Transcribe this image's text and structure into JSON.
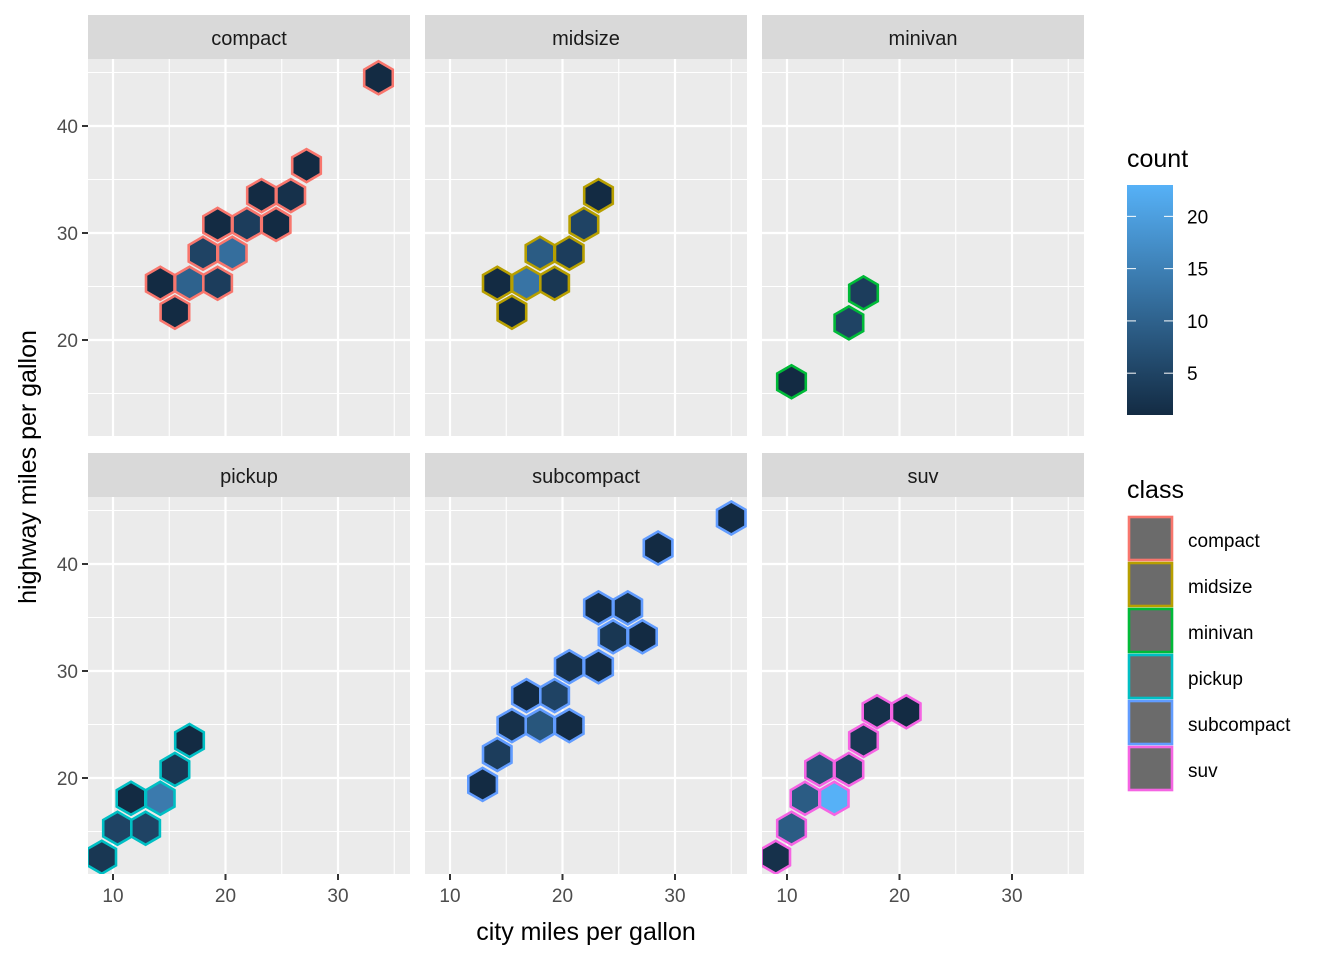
{
  "chart_data": {
    "type": "heatmap",
    "subtype": "hexbin-faceted",
    "xlabel": "city miles per gallon",
    "ylabel": "highway miles per gallon",
    "xlim": [
      8.8,
      37.3
    ],
    "ylim": [
      10.8,
      46.0
    ],
    "x_ticks": [
      10,
      20,
      30
    ],
    "y_ticks": [
      20,
      30,
      40
    ],
    "grid": true,
    "facet_var": "class",
    "facets": [
      {
        "name": "compact",
        "color": "#F8766D",
        "hexes": [
          {
            "cty": 33.6,
            "hwy": 44.5,
            "count": 1
          },
          {
            "cty": 27.2,
            "hwy": 36.3,
            "count": 1
          },
          {
            "cty": 23.2,
            "hwy": 33.5,
            "count": 1
          },
          {
            "cty": 25.8,
            "hwy": 33.5,
            "count": 2
          },
          {
            "cty": 19.3,
            "hwy": 30.8,
            "count": 1
          },
          {
            "cty": 21.9,
            "hwy": 30.8,
            "count": 4
          },
          {
            "cty": 24.5,
            "hwy": 30.8,
            "count": 1
          },
          {
            "cty": 18.0,
            "hwy": 28.1,
            "count": 5
          },
          {
            "cty": 20.6,
            "hwy": 28.1,
            "count": 12
          },
          {
            "cty": 14.2,
            "hwy": 25.3,
            "count": 1
          },
          {
            "cty": 16.8,
            "hwy": 25.3,
            "count": 10
          },
          {
            "cty": 19.3,
            "hwy": 25.3,
            "count": 4
          },
          {
            "cty": 15.5,
            "hwy": 22.6,
            "count": 1
          }
        ]
      },
      {
        "name": "midsize",
        "color": "#B79F00",
        "hexes": [
          {
            "cty": 23.2,
            "hwy": 33.5,
            "count": 1
          },
          {
            "cty": 21.9,
            "hwy": 30.8,
            "count": 5
          },
          {
            "cty": 18.0,
            "hwy": 28.1,
            "count": 9
          },
          {
            "cty": 20.6,
            "hwy": 28.1,
            "count": 4
          },
          {
            "cty": 14.2,
            "hwy": 25.3,
            "count": 1
          },
          {
            "cty": 16.8,
            "hwy": 25.3,
            "count": 13
          },
          {
            "cty": 19.3,
            "hwy": 25.3,
            "count": 3
          },
          {
            "cty": 15.5,
            "hwy": 22.6,
            "count": 1
          }
        ]
      },
      {
        "name": "minivan",
        "color": "#00BA38",
        "hexes": [
          {
            "cty": 16.8,
            "hwy": 24.4,
            "count": 4
          },
          {
            "cty": 15.5,
            "hwy": 21.6,
            "count": 5
          },
          {
            "cty": 10.4,
            "hwy": 16.1,
            "count": 1
          }
        ]
      },
      {
        "name": "pickup",
        "color": "#00BFC4",
        "hexes": [
          {
            "cty": 16.8,
            "hwy": 23.5,
            "count": 1
          },
          {
            "cty": 15.5,
            "hwy": 20.8,
            "count": 3
          },
          {
            "cty": 11.6,
            "hwy": 18.1,
            "count": 1
          },
          {
            "cty": 14.2,
            "hwy": 18.1,
            "count": 14
          },
          {
            "cty": 10.4,
            "hwy": 15.3,
            "count": 5
          },
          {
            "cty": 12.9,
            "hwy": 15.3,
            "count": 5
          },
          {
            "cty": 9.0,
            "hwy": 12.6,
            "count": 3
          }
        ]
      },
      {
        "name": "subcompact",
        "color": "#619CFF",
        "hexes": [
          {
            "cty": 35.0,
            "hwy": 44.3,
            "count": 1
          },
          {
            "cty": 28.5,
            "hwy": 41.5,
            "count": 1
          },
          {
            "cty": 23.2,
            "hwy": 35.9,
            "count": 1
          },
          {
            "cty": 25.8,
            "hwy": 35.9,
            "count": 2
          },
          {
            "cty": 24.5,
            "hwy": 33.2,
            "count": 3
          },
          {
            "cty": 27.1,
            "hwy": 33.2,
            "count": 1
          },
          {
            "cty": 20.6,
            "hwy": 30.4,
            "count": 2
          },
          {
            "cty": 23.2,
            "hwy": 30.4,
            "count": 1
          },
          {
            "cty": 16.8,
            "hwy": 27.7,
            "count": 1
          },
          {
            "cty": 19.3,
            "hwy": 27.7,
            "count": 5
          },
          {
            "cty": 15.5,
            "hwy": 24.9,
            "count": 2
          },
          {
            "cty": 18.0,
            "hwy": 24.9,
            "count": 8
          },
          {
            "cty": 20.6,
            "hwy": 24.9,
            "count": 1
          },
          {
            "cty": 14.2,
            "hwy": 22.2,
            "count": 4
          },
          {
            "cty": 12.9,
            "hwy": 19.4,
            "count": 1
          }
        ]
      },
      {
        "name": "suv",
        "color": "#F564E3",
        "hexes": [
          {
            "cty": 18.0,
            "hwy": 26.2,
            "count": 2
          },
          {
            "cty": 20.6,
            "hwy": 26.2,
            "count": 1
          },
          {
            "cty": 16.8,
            "hwy": 23.5,
            "count": 3
          },
          {
            "cty": 12.9,
            "hwy": 20.8,
            "count": 7
          },
          {
            "cty": 15.5,
            "hwy": 20.8,
            "count": 5
          },
          {
            "cty": 11.6,
            "hwy": 18.1,
            "count": 9
          },
          {
            "cty": 14.2,
            "hwy": 18.1,
            "count": 23
          },
          {
            "cty": 10.4,
            "hwy": 15.3,
            "count": 9
          },
          {
            "cty": 9.0,
            "hwy": 12.6,
            "count": 2
          }
        ]
      }
    ],
    "fill_legend": {
      "title": "count",
      "range": [
        1,
        23
      ],
      "breaks": [
        5,
        10,
        15,
        20
      ],
      "low_color": "#132B43",
      "high_color": "#56B1F7"
    },
    "color_legend": {
      "title": "class",
      "entries": [
        "compact",
        "midsize",
        "minivan",
        "pickup",
        "subcompact",
        "suv"
      ]
    }
  }
}
